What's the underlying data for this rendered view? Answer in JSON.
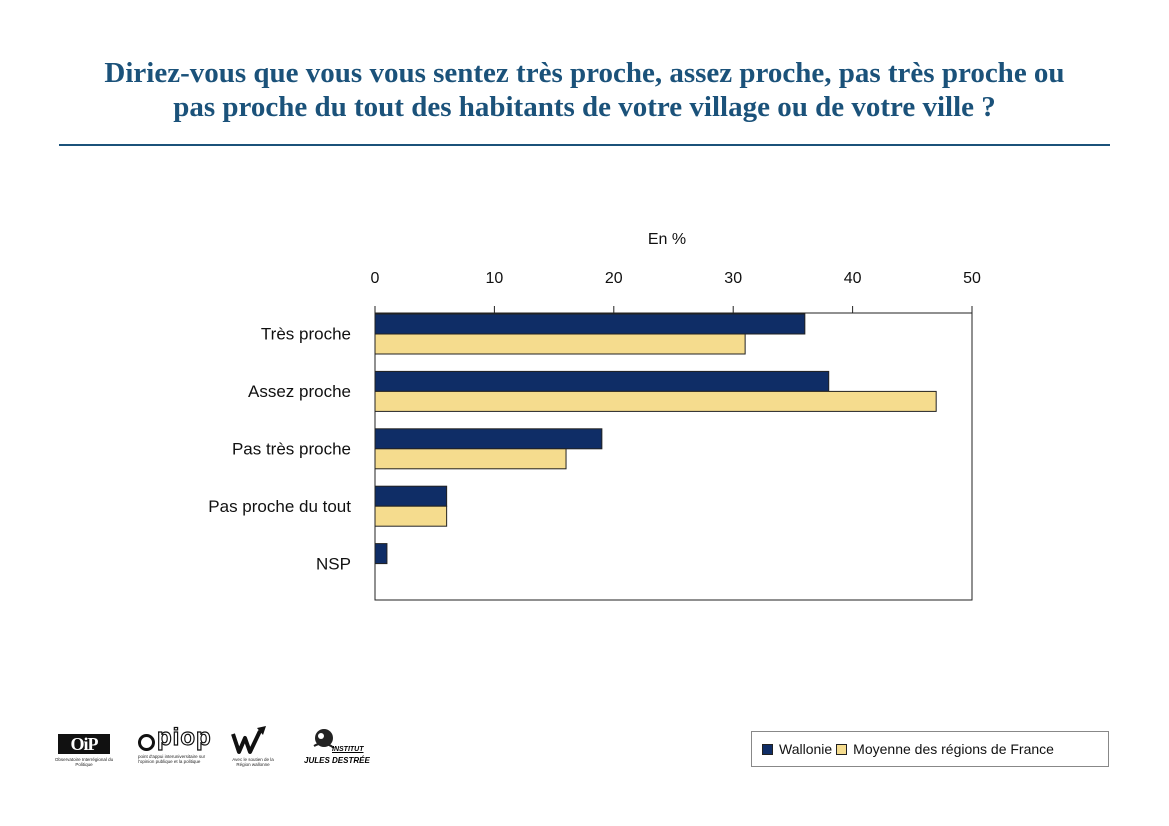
{
  "page": {
    "title_line1": "Diriez-vous que vous vous sentez très proche, assez proche, pas très proche ou",
    "title_line2": "pas proche du tout des habitants de votre village ou de votre ville ?",
    "accent_color": "#1b527a"
  },
  "chart_data": {
    "type": "bar",
    "orientation": "horizontal",
    "unit_label": "En %",
    "categories": [
      "Très proche",
      "Assez proche",
      "Pas très proche",
      "Pas proche du tout",
      "NSP"
    ],
    "series": [
      {
        "name": "Wallonie",
        "color": "#0f2d66",
        "values": [
          36,
          38,
          19,
          6,
          1
        ]
      },
      {
        "name": "Moyenne des régions de France",
        "color": "#f5dc8e",
        "values": [
          31,
          47,
          16,
          6,
          0
        ]
      }
    ],
    "xlim": [
      0,
      50
    ],
    "xticks": [
      0,
      10,
      20,
      30,
      40,
      50
    ],
    "axis_position": "top",
    "grid": false,
    "legend_position": "bottom-right"
  },
  "logos": [
    {
      "icon": "oip-logo",
      "text": "OiP",
      "caption": "Observatoire Interrégional du Politique"
    },
    {
      "icon": "piop-logo",
      "text": "piop",
      "caption": "point d'appui interuniversitaire sur l'opinion publique et la politique"
    },
    {
      "icon": "wallonia-logo",
      "caption": "Avec le soutien de la Région wallonne"
    },
    {
      "icon": "institut-logo",
      "text_line1": "INSTITUT",
      "text_line2": "JULES DESTRÉE"
    }
  ]
}
